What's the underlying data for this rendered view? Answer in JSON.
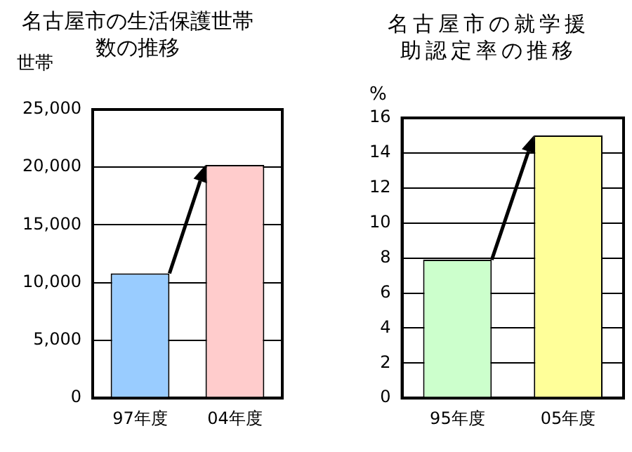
{
  "chart_data": [
    {
      "type": "bar",
      "title": "名古屋市の生活保護世帯数の推移",
      "ylabel": "世帯",
      "categories": [
        "97年度",
        "04年度"
      ],
      "values": [
        10800,
        20200
      ],
      "colors": [
        "#99ccff",
        "#ffcccc"
      ],
      "ylim": [
        0,
        25000
      ],
      "yticks": [
        {
          "value": 0,
          "label": "0"
        },
        {
          "value": 5000,
          "label": "5,000"
        },
        {
          "value": 10000,
          "label": "10,000"
        },
        {
          "value": 15000,
          "label": "15,000"
        },
        {
          "value": 20000,
          "label": "20,000"
        },
        {
          "value": 25000,
          "label": "25,000"
        }
      ],
      "grid": "y"
    },
    {
      "type": "bar",
      "title": "名古屋市の就学援助認定率の推移",
      "ylabel": "%",
      "categories": [
        "95年度",
        "05年度"
      ],
      "values": [
        7.9,
        15
      ],
      "colors": [
        "#ccffcc",
        "#ffff99"
      ],
      "ylim": [
        0,
        16
      ],
      "yticks": [
        0,
        2,
        4,
        6,
        8,
        10,
        12,
        14,
        16
      ],
      "grid": "y"
    }
  ]
}
